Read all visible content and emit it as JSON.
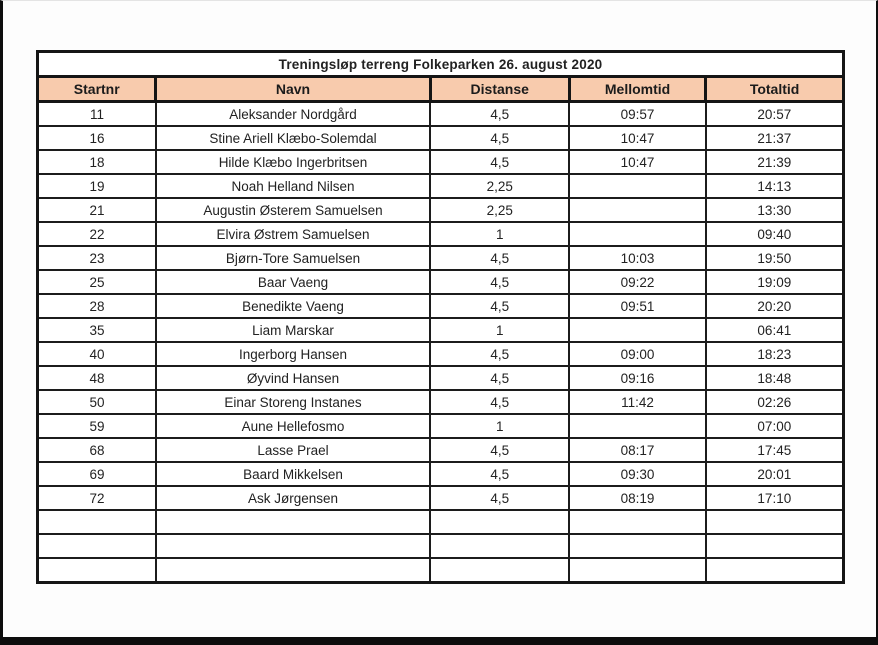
{
  "page": {
    "title": "Treningsløp terreng Folkeparken 26. august 2020"
  },
  "table": {
    "columns": [
      "Startnr",
      "Navn",
      "Distanse",
      "Mellomtid",
      "Totaltid"
    ],
    "rows": [
      [
        "11",
        "Aleksander Nordgård",
        "4,5",
        "09:57",
        "20:57"
      ],
      [
        "16",
        "Stine Ariell Klæbo-Solemdal",
        "4,5",
        "10:47",
        "21:37"
      ],
      [
        "18",
        "Hilde Klæbo Ingerbritsen",
        "4,5",
        "10:47",
        "21:39"
      ],
      [
        "19",
        "Noah Helland Nilsen",
        "2,25",
        "",
        "14:13"
      ],
      [
        "21",
        "Augustin Østerem Samuelsen",
        "2,25",
        "",
        "13:30"
      ],
      [
        "22",
        "Elvira Østrem Samuelsen",
        "1",
        "",
        "09:40"
      ],
      [
        "23",
        "Bjørn-Tore Samuelsen",
        "4,5",
        "10:03",
        "19:50"
      ],
      [
        "25",
        "Baar Vaeng",
        "4,5",
        "09:22",
        "19:09"
      ],
      [
        "28",
        "Benedikte Vaeng",
        "4,5",
        "09:51",
        "20:20"
      ],
      [
        "35",
        "Liam Marskar",
        "1",
        "",
        "06:41"
      ],
      [
        "40",
        "Ingerborg Hansen",
        "4,5",
        "09:00",
        "18:23"
      ],
      [
        "48",
        "Øyvind Hansen",
        "4,5",
        "09:16",
        "18:48"
      ],
      [
        "50",
        "Einar Storeng Instanes",
        "4,5",
        "11:42",
        "02:26"
      ],
      [
        "59",
        "Aune Hellefosmo",
        "1",
        "",
        "07:00"
      ],
      [
        "68",
        "Lasse Prael",
        "4,5",
        "08:17",
        "17:45"
      ],
      [
        "69",
        "Baard Mikkelsen",
        "4,5",
        "09:30",
        "20:01"
      ],
      [
        "72",
        "Ask Jørgensen",
        "4,5",
        "08:19",
        "17:10"
      ],
      [
        "",
        "",
        "",
        "",
        ""
      ],
      [
        "",
        "",
        "",
        "",
        ""
      ],
      [
        "",
        "",
        "",
        "",
        ""
      ]
    ],
    "colors": {
      "header_bg": "#f8cbad",
      "border": "#1a1a1a",
      "frame": "#0d0d0d"
    }
  }
}
